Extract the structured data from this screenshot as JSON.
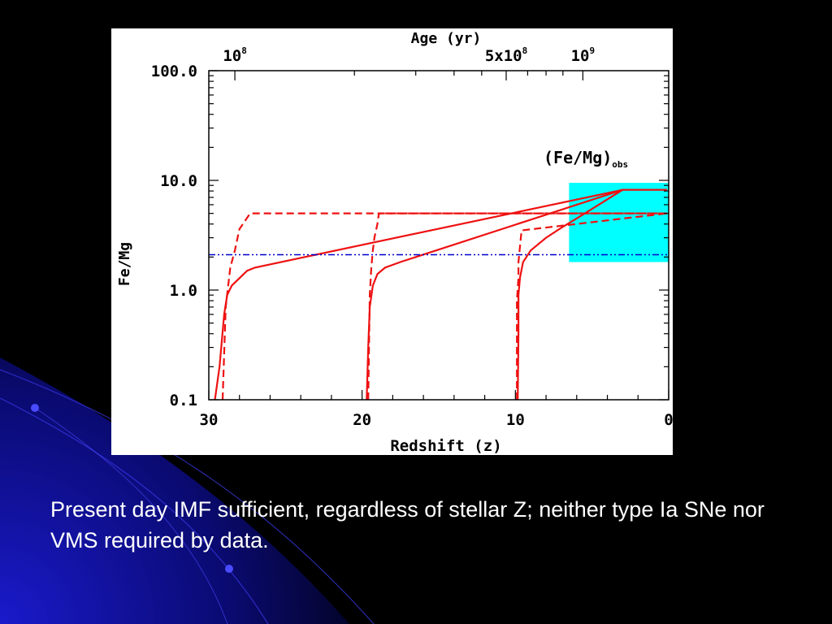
{
  "caption": "Present day IMF sufficient, regardless of stellar Z; neither type Ia SNe nor VMS required by data.",
  "chart_data": {
    "type": "line",
    "title": "Age (yr)",
    "xlabel": "Redshift (z)",
    "ylabel": "Fe/Mg",
    "xlim": [
      30,
      0
    ],
    "ylim": [
      0.1,
      100
    ],
    "yscale": "log",
    "x_ticks": [
      30,
      20,
      10,
      0
    ],
    "y_ticks": [
      {
        "value": 0.1,
        "label": "0.1"
      },
      {
        "value": 1.0,
        "label": "1.0"
      },
      {
        "value": 10.0,
        "label": "10.0"
      },
      {
        "value": 100.0,
        "label": "100.0"
      }
    ],
    "top_axis_labels": [
      {
        "label": "10",
        "exponent": "8",
        "z": 28.3
      },
      {
        "label": "5x10",
        "exponent": "8",
        "z": 10.6
      },
      {
        "label": "10",
        "exponent": "9",
        "z": 5.6
      }
    ],
    "observed_band": {
      "label": "(Fe/Mg)",
      "subscript": "obs",
      "z_range": [
        6.5,
        0
      ],
      "fe_mg_range": [
        1.8,
        9.5
      ],
      "color": "#00ffff"
    },
    "reference_line": {
      "fe_mg": 2.1,
      "color": "#0000cc",
      "style": "dash-dot"
    },
    "colors": {
      "model": "#ee1111",
      "reference": "#0000cc",
      "band": "#00ffff"
    },
    "series": [
      {
        "style": "solid",
        "x": [
          29.6,
          29.3,
          29.0,
          28.8,
          28.5,
          27.5,
          27.0,
          3.0,
          0.1
        ],
        "y": [
          0.1,
          0.2,
          0.6,
          0.9,
          1.1,
          1.5,
          1.6,
          8.2,
          8.2
        ]
      },
      {
        "style": "solid",
        "x": [
          19.7,
          19.6,
          19.5,
          19.3,
          19.0,
          18.5,
          17.5,
          3.0
        ],
        "y": [
          0.1,
          0.3,
          0.7,
          1.1,
          1.4,
          1.6,
          1.8,
          8.2
        ]
      },
      {
        "style": "solid",
        "x": [
          9.85,
          9.8,
          9.8,
          9.7,
          9.5,
          9.0,
          8.0,
          7.0,
          6.0,
          5.0,
          3.0
        ],
        "y": [
          0.1,
          0.4,
          0.9,
          1.3,
          1.8,
          2.3,
          3.0,
          3.7,
          4.5,
          5.5,
          8.2
        ]
      },
      {
        "style": "dashed",
        "x": [
          29.1,
          28.9,
          28.6,
          28.3,
          28.0,
          27.3,
          0.1
        ],
        "y": [
          0.1,
          0.7,
          1.6,
          2.3,
          3.6,
          5.0,
          5.0
        ]
      },
      {
        "style": "dashed",
        "x": [
          19.6,
          19.5,
          19.4,
          19.3,
          19.2,
          19.0,
          18.9,
          0.1
        ],
        "y": [
          0.1,
          0.9,
          1.6,
          2.3,
          3.0,
          4.0,
          5.0,
          5.0
        ]
      },
      {
        "style": "dashed",
        "x": [
          9.9,
          9.9,
          9.8,
          9.8,
          9.7,
          9.6,
          0.1
        ],
        "y": [
          0.1,
          0.8,
          1.3,
          1.8,
          2.5,
          3.5,
          5.0
        ]
      }
    ]
  }
}
